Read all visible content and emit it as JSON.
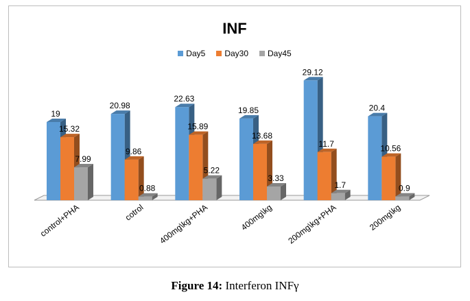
{
  "chart_data": {
    "type": "bar",
    "title": "INF",
    "categories": [
      "control+PHA",
      "cotrol",
      "400mg\\kg+PHA",
      "400mg\\kg",
      "200mg\\kg+PHA",
      "200mg\\kg"
    ],
    "series": [
      {
        "name": "Day5",
        "values": [
          19,
          20.98,
          22.63,
          19.85,
          29.12,
          20.4
        ],
        "color": "#5b9bd5",
        "labels": [
          "19",
          "20.98",
          "22.63",
          "19.85",
          "29.12",
          "20.4"
        ]
      },
      {
        "name": "Day30",
        "values": [
          15.32,
          9.86,
          15.89,
          13.68,
          11.7,
          10.56
        ],
        "color": "#ed7d31",
        "labels": [
          "15.32",
          "9.86",
          "15.89",
          "13.68",
          "11.7",
          "10.56"
        ]
      },
      {
        "name": "Day45",
        "values": [
          7.99,
          0.88,
          5.22,
          3.33,
          1.7,
          0.9
        ],
        "color": "#a5a5a5",
        "labels": [
          "7.99",
          "0.88",
          "5.22",
          "3.33",
          "1.7",
          "0.9"
        ]
      }
    ],
    "ylim": [
      0,
      30
    ],
    "legend_position": "top-center",
    "grid": false,
    "style": "3d-bar"
  },
  "caption": {
    "label": "Figure 14:",
    "text": "Interferon INFγ"
  }
}
